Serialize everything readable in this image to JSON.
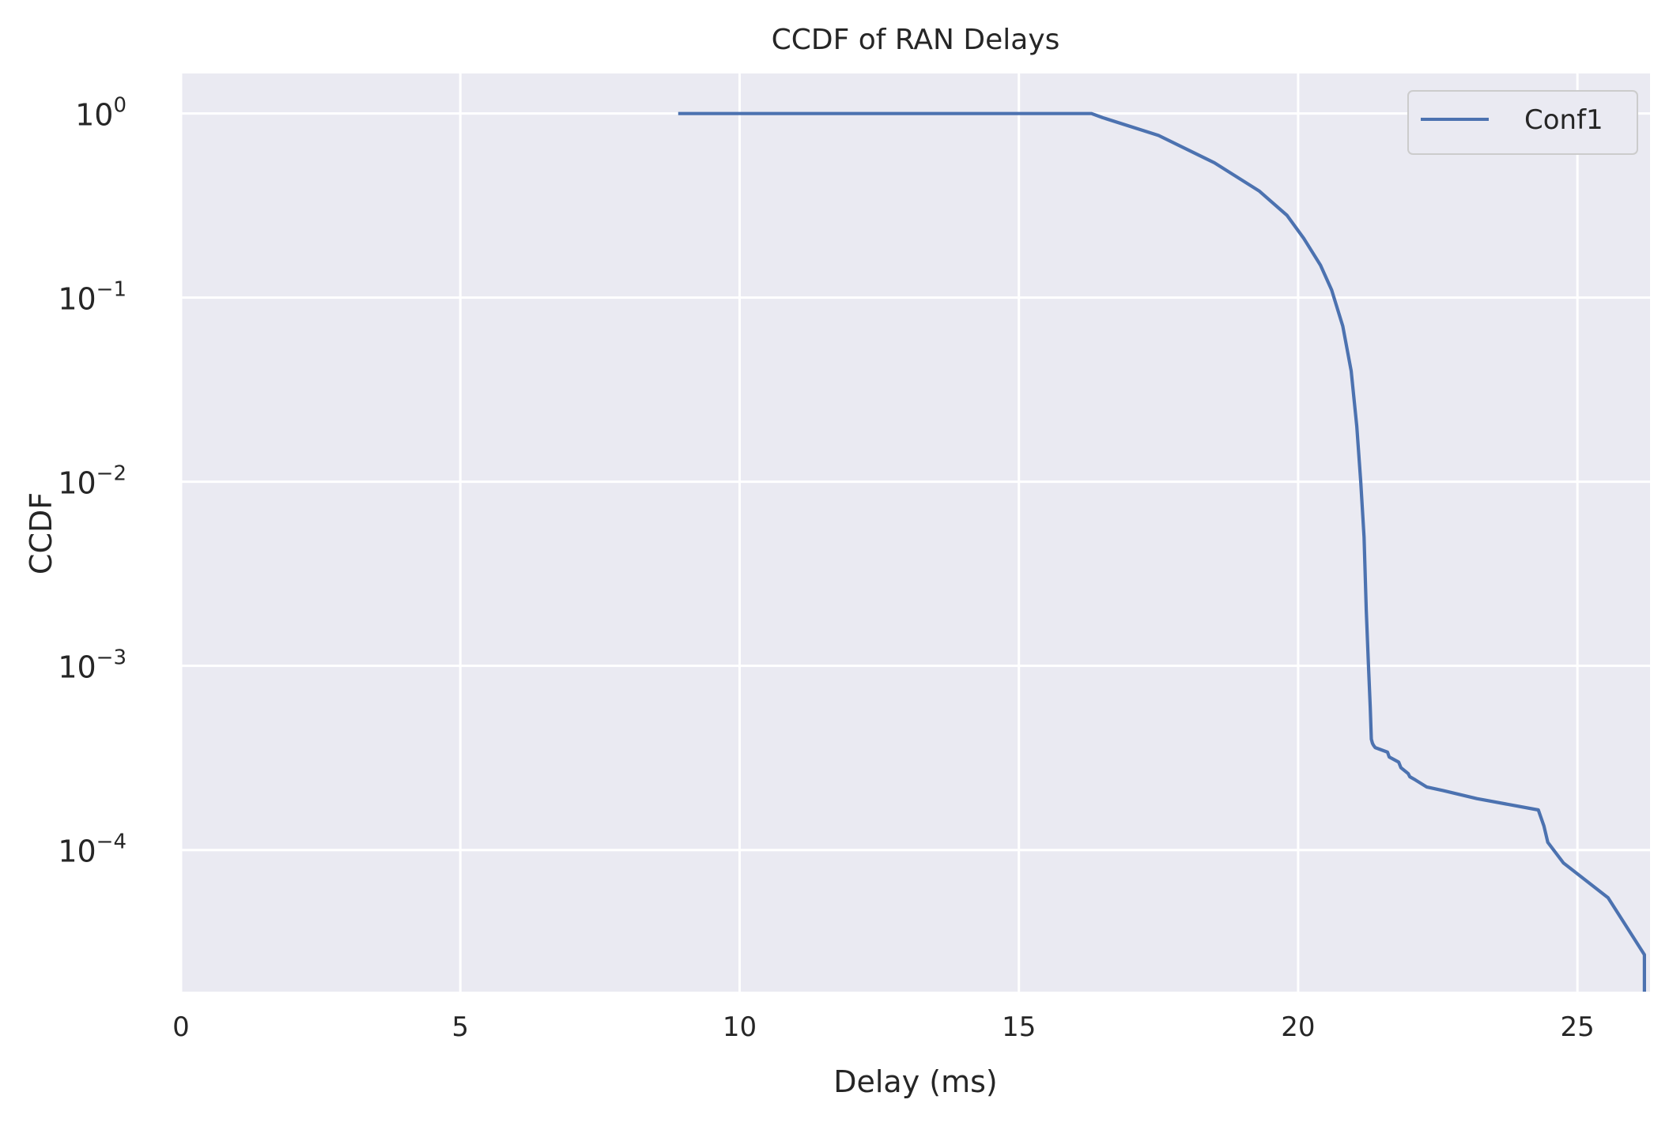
{
  "chart_data": {
    "type": "line",
    "title": "CCDF of RAN Delays",
    "xlabel": "Delay (ms)",
    "ylabel": "CCDF",
    "xlim": [
      0,
      26.3
    ],
    "ylim": [
      1.7e-05,
      1.65
    ],
    "yscale": "log",
    "xticks": [
      0,
      5,
      10,
      15,
      20,
      25
    ],
    "yticks": [
      {
        "value": 1,
        "base": "10",
        "exp": "0"
      },
      {
        "value": 0.1,
        "base": "10",
        "exp": "−1"
      },
      {
        "value": 0.01,
        "base": "10",
        "exp": "−2"
      },
      {
        "value": 0.001,
        "base": "10",
        "exp": "−3"
      },
      {
        "value": 0.0001,
        "base": "10",
        "exp": "−4"
      }
    ],
    "grid": true,
    "legend_position": "top-right",
    "colors": {
      "background": "#eaeaf2",
      "grid": "#ffffff",
      "series": "#4c72b0"
    },
    "series": [
      {
        "name": "Conf1",
        "x": [
          8.9,
          16.3,
          16.5,
          17.5,
          18.5,
          19.3,
          19.8,
          20.1,
          20.4,
          20.6,
          20.8,
          20.95,
          21.05,
          21.12,
          21.18,
          21.22,
          21.26,
          21.29,
          21.31,
          21.33,
          21.35,
          21.38,
          21.6,
          21.63,
          21.8,
          21.84,
          21.97,
          22.0,
          22.1,
          22.3,
          22.6,
          23.2,
          24.3,
          24.4,
          24.47,
          24.75,
          25.55,
          26.2,
          26.2
        ],
        "y": [
          1.0,
          1.0,
          0.95,
          0.76,
          0.54,
          0.38,
          0.28,
          0.21,
          0.15,
          0.11,
          0.07,
          0.04,
          0.02,
          0.01,
          0.005,
          0.002,
          0.001,
          0.0006,
          0.0004,
          0.00038,
          0.00037,
          0.00036,
          0.00034,
          0.00032,
          0.0003,
          0.00028,
          0.00026,
          0.00025,
          0.00024,
          0.00022,
          0.00021,
          0.00019,
          0.000165,
          0.000135,
          0.00011,
          8.5e-05,
          5.5e-05,
          2.7e-05,
          1.7e-05
        ]
      }
    ]
  }
}
